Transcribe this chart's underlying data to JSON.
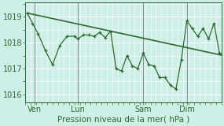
{
  "xlabel": "Pression niveau de la mer( hPa )",
  "bg_color": "#ceeee8",
  "grid_color": "#ffffff",
  "line_color": "#2d6a2d",
  "vline_color": "#888899",
  "ylim": [
    1015.7,
    1019.55
  ],
  "xlim": [
    0,
    216
  ],
  "day_labels": [
    "Ven",
    "Lun",
    "Sam",
    "Dim"
  ],
  "day_positions": [
    10,
    58,
    130,
    178
  ],
  "smooth_line_x": [
    2,
    216
  ],
  "smooth_line_y": [
    1019.15,
    1017.52
  ],
  "jagged_x": [
    2,
    8,
    14,
    22,
    30,
    38,
    46,
    54,
    58,
    64,
    70,
    76,
    82,
    88,
    94,
    100,
    106,
    112,
    118,
    124,
    130,
    136,
    142,
    148,
    154,
    160,
    166,
    172,
    178,
    184,
    190,
    196,
    202,
    208,
    214,
    216
  ],
  "jagged_y": [
    1019.15,
    1018.75,
    1018.35,
    1017.7,
    1017.15,
    1017.9,
    1018.25,
    1018.25,
    1018.15,
    1018.3,
    1018.3,
    1018.25,
    1018.4,
    1018.2,
    1018.45,
    1017.0,
    1016.9,
    1017.5,
    1017.1,
    1017.0,
    1017.6,
    1017.15,
    1017.1,
    1016.65,
    1016.65,
    1016.35,
    1016.2,
    1017.35,
    1018.85,
    1018.55,
    1018.25,
    1018.55,
    1018.15,
    1018.75,
    1017.6,
    1017.55
  ],
  "vline_positions": [
    10,
    58,
    130,
    178
  ],
  "yticks": [
    1016,
    1017,
    1018,
    1019
  ],
  "xlabel_fontsize": 7.5,
  "tick_fontsize": 7
}
